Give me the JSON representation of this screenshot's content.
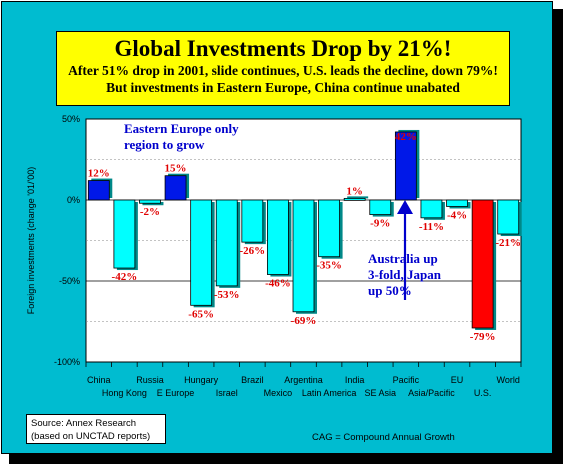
{
  "chart_data": {
    "type": "bar",
    "title": "Global Investments Drop by 21%!",
    "subtitle": [
      "After 51% drop in 2001, slide continues, U.S. leads the decline, down 79%!",
      "But investments in Eastern Europe, China continue unabated"
    ],
    "ylabel": "Foreign investments (change '01/'00)",
    "ylim": [
      -100,
      50
    ],
    "yticks": [
      "50%",
      "0%",
      "-50%",
      "-100%"
    ],
    "categories": [
      "China",
      "Hong Kong",
      "Russia",
      "E Europe",
      "Hungary",
      "Israel",
      "Brazil",
      "Mexico",
      "Argentina",
      "Latin America",
      "India",
      "SE Asia",
      "Pacific",
      "Asia/Pacific",
      "EU",
      "U.S.",
      "World"
    ],
    "values": [
      12,
      -42,
      -2,
      15,
      -65,
      -53,
      -26,
      -46,
      -69,
      -35,
      1,
      -9,
      42,
      -11,
      -4,
      -79,
      -21
    ],
    "value_labels": [
      "12%",
      "-42%",
      "-2%",
      "15%",
      "-65%",
      "-53%",
      "-26%",
      "-46%",
      "-69%",
      "-35%",
      "1%",
      "-9%",
      "42%",
      "-11%",
      "-4%",
      "-79%",
      "-21%"
    ],
    "bar_colors": [
      "#0018e8",
      "#00ffff",
      "#00ffff",
      "#0018e8",
      "#00ffff",
      "#00ffff",
      "#00ffff",
      "#00ffff",
      "#00ffff",
      "#00ffff",
      "#00ffff",
      "#00ffff",
      "#0018e8",
      "#00ffff",
      "#00ffff",
      "#ff0000",
      "#00ffff"
    ],
    "annotations": [
      "Eastern Europe only region to grow",
      "Australia up 3-fold, Japan up 50%"
    ],
    "grid": "horizontal",
    "legend": "none"
  },
  "source_lines": [
    "Source: Annex Research",
    "(based on UNCTAD reports)"
  ],
  "footnote": "CAG = Compound Annual Growth",
  "colors": {
    "background": "#00bcd0",
    "title_box": "#ffff00",
    "label_red": "#e00000",
    "annotation_blue": "#0000cc"
  }
}
